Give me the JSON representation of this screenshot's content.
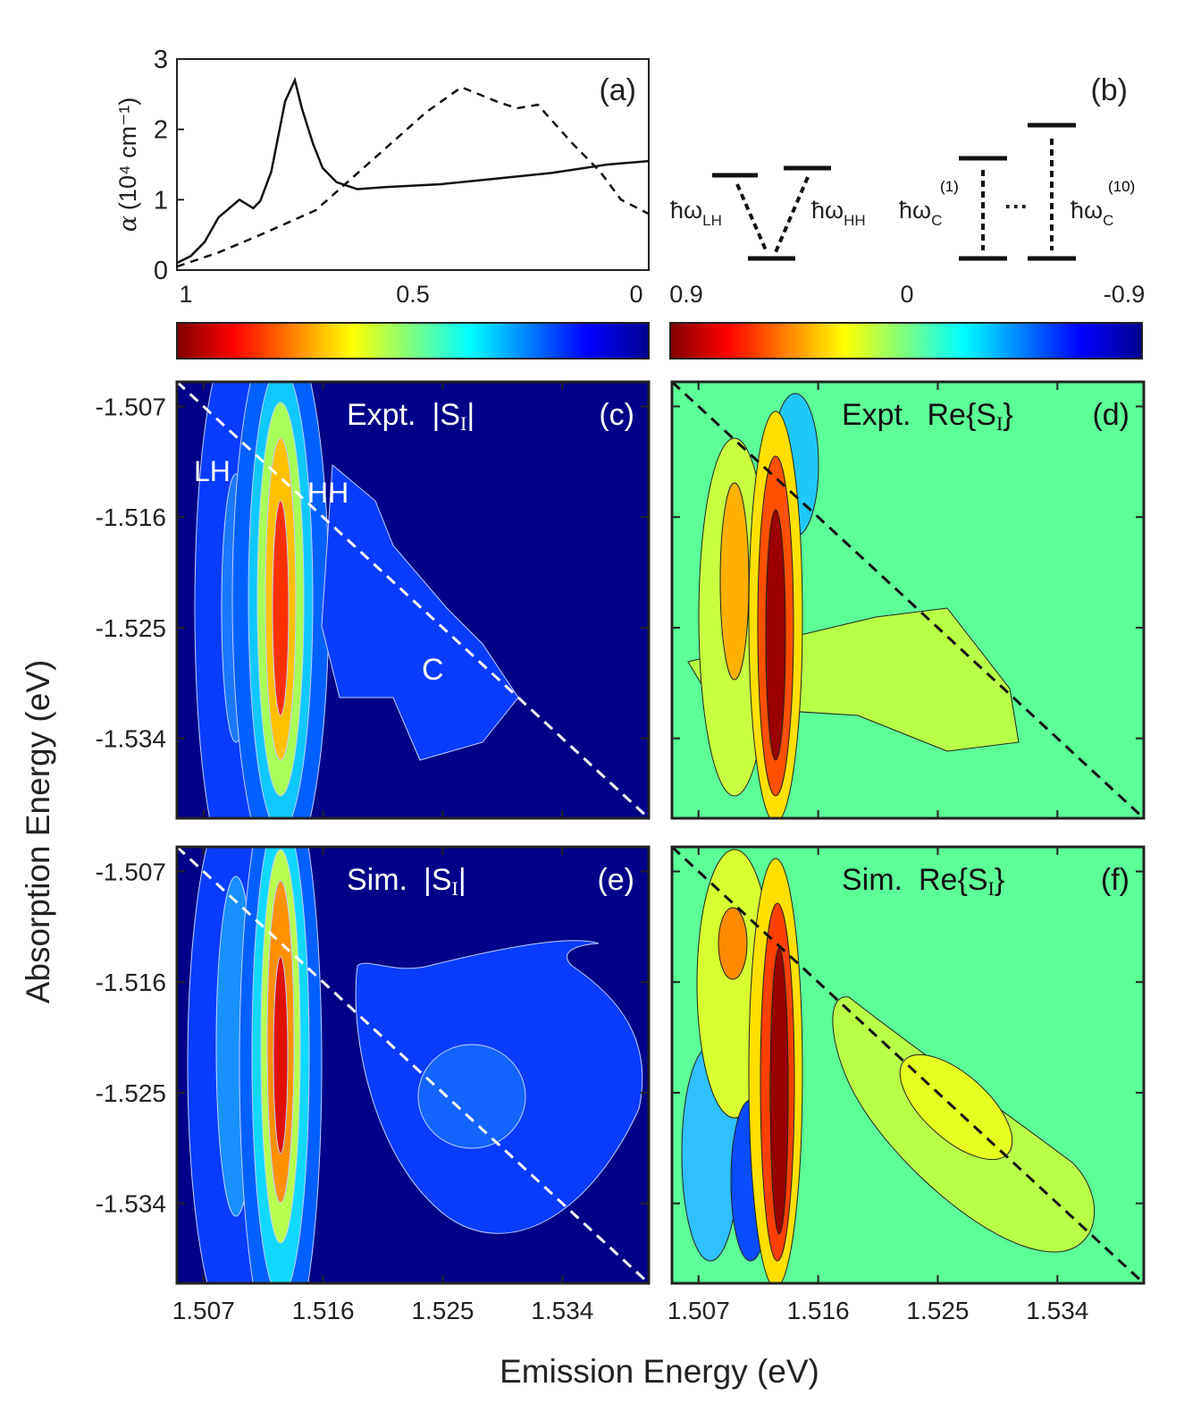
{
  "chart_data": [
    {
      "panel": "(a)",
      "type": "line",
      "ylabel_symbol": "α",
      "ylabel_rest": "(10⁴ cm⁻¹)",
      "yticks": [
        "0",
        "1",
        "2",
        "3"
      ],
      "ylim": [
        0,
        3
      ],
      "xlim": [
        1.507,
        1.541
      ],
      "series": [
        {
          "style": "solid",
          "x": [
            1.507,
            1.508,
            1.509,
            1.51,
            1.5115,
            1.5125,
            1.513,
            1.5138,
            1.5148,
            1.5155,
            1.516,
            1.5168,
            1.5175,
            1.5185,
            1.52,
            1.522,
            1.526,
            1.53,
            1.534,
            1.538,
            1.541
          ],
          "y": [
            0.1,
            0.2,
            0.4,
            0.75,
            1.0,
            0.88,
            0.98,
            1.4,
            2.4,
            2.7,
            2.3,
            1.8,
            1.45,
            1.25,
            1.15,
            1.18,
            1.22,
            1.3,
            1.38,
            1.5,
            1.55
          ]
        },
        {
          "style": "dashed",
          "x": [
            1.507,
            1.51,
            1.513,
            1.517,
            1.521,
            1.525,
            1.5275,
            1.53,
            1.5315,
            1.533,
            1.5355,
            1.5375,
            1.539,
            1.541
          ],
          "y": [
            0.05,
            0.25,
            0.5,
            0.85,
            1.55,
            2.25,
            2.6,
            2.4,
            2.3,
            2.35,
            1.8,
            1.4,
            1.0,
            0.8
          ]
        }
      ]
    },
    {
      "panel": "(b)",
      "type": "diagram",
      "labels": {
        "lh": "ħω",
        "lh_sub": "LH",
        "hh": "ħω",
        "hh_sub": "HH",
        "c1": "ħω",
        "c1_sub": "C",
        "c1_sup": "(1)",
        "dots": "···",
        "c10": "ħω",
        "c10_sub": "C",
        "c10_sup": "(10)"
      }
    },
    {
      "panel": "colorbars",
      "type": "colorbar",
      "left_ticks": [
        "1",
        "0.5",
        "0"
      ],
      "right_ticks": [
        "0.9",
        "0",
        "-0.9"
      ],
      "colormap": "jet"
    },
    {
      "type": "heatmap",
      "xlabel": "Emission Energy (eV)",
      "ylabel": "Absorption Energy (eV)",
      "xticks": [
        "1.507",
        "1.516",
        "1.525",
        "1.534"
      ],
      "yticks": [
        "-1.507",
        "-1.516",
        "-1.525",
        "-1.534"
      ],
      "xlim": [
        1.505,
        1.5405
      ],
      "ylim": [
        -1.5405,
        -1.505
      ],
      "panels": [
        {
          "tag": "(c)",
          "title_pre": "Expt.",
          "title_main": "|S",
          "title_sub": "I",
          "title_post": "|",
          "mode": "abs",
          "annotations": [
            "LH",
            "HH",
            "C"
          ]
        },
        {
          "tag": "(d)",
          "title_pre": "Expt.",
          "title_main": "Re{S",
          "title_sub": "I",
          "title_post": "}",
          "mode": "re",
          "annotations": []
        },
        {
          "tag": "(e)",
          "title_pre": "Sim.",
          "title_main": "|S",
          "title_sub": "I",
          "title_post": "|",
          "mode": "abs",
          "annotations": []
        },
        {
          "tag": "(f)",
          "title_pre": "Sim.",
          "title_main": "Re{S",
          "title_sub": "I",
          "title_post": "}",
          "mode": "re",
          "annotations": []
        }
      ]
    }
  ]
}
